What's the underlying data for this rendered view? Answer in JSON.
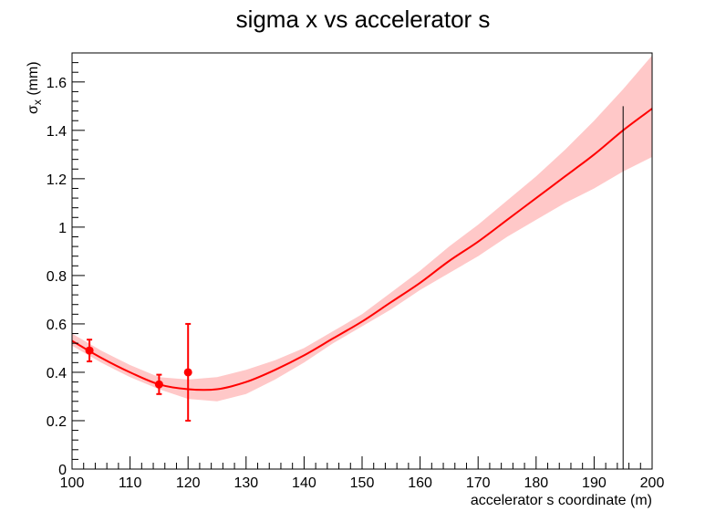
{
  "chart_data": {
    "type": "line",
    "title": "sigma x vs accelerator s",
    "xlabel": "accelerator s coordinate (m)",
    "ylabel": {
      "symbol": "σ",
      "subscript": "x",
      "unit": " (mm)"
    },
    "xlim": [
      100,
      200
    ],
    "ylim": [
      0,
      1.72
    ],
    "x_ticks": [
      100,
      110,
      120,
      130,
      140,
      150,
      160,
      170,
      180,
      190,
      200
    ],
    "y_ticks": [
      0,
      0.2,
      0.4,
      0.6,
      0.8,
      1,
      1.2,
      1.4,
      1.6
    ],
    "x_tick_labels": [
      "100",
      "110",
      "120",
      "130",
      "140",
      "150",
      "160",
      "170",
      "180",
      "190",
      "200"
    ],
    "y_tick_labels": [
      "0",
      "0.2",
      "0.4",
      "0.6",
      "0.8",
      "1",
      "1.2",
      "1.4",
      "1.6"
    ],
    "grid": false,
    "colors": {
      "fit": "#ff0000",
      "band": "#ffc8c8",
      "points": "#ff0000",
      "marker_line": "#000000"
    },
    "fit_curve": {
      "x": [
        100,
        105,
        110,
        115,
        120,
        125,
        130,
        135,
        140,
        145,
        150,
        155,
        160,
        165,
        170,
        175,
        180,
        185,
        190,
        195,
        200
      ],
      "y": [
        0.53,
        0.46,
        0.4,
        0.35,
        0.33,
        0.33,
        0.36,
        0.41,
        0.47,
        0.54,
        0.61,
        0.69,
        0.77,
        0.86,
        0.94,
        1.03,
        1.12,
        1.21,
        1.3,
        1.4,
        1.49
      ],
      "band_low": [
        0.51,
        0.44,
        0.38,
        0.33,
        0.29,
        0.28,
        0.31,
        0.37,
        0.44,
        0.52,
        0.59,
        0.66,
        0.74,
        0.81,
        0.88,
        0.96,
        1.03,
        1.1,
        1.16,
        1.23,
        1.29
      ],
      "band_high": [
        0.56,
        0.49,
        0.43,
        0.38,
        0.37,
        0.38,
        0.41,
        0.45,
        0.5,
        0.57,
        0.64,
        0.73,
        0.82,
        0.92,
        1.01,
        1.11,
        1.21,
        1.32,
        1.44,
        1.57,
        1.71
      ]
    },
    "data_points": [
      {
        "x": 103,
        "y": 0.49,
        "err": 0.045
      },
      {
        "x": 115,
        "y": 0.35,
        "err": 0.04
      },
      {
        "x": 120,
        "y": 0.4,
        "err": 0.2
      }
    ],
    "vertical_marker": {
      "x": 195,
      "y_top": 1.5
    }
  }
}
